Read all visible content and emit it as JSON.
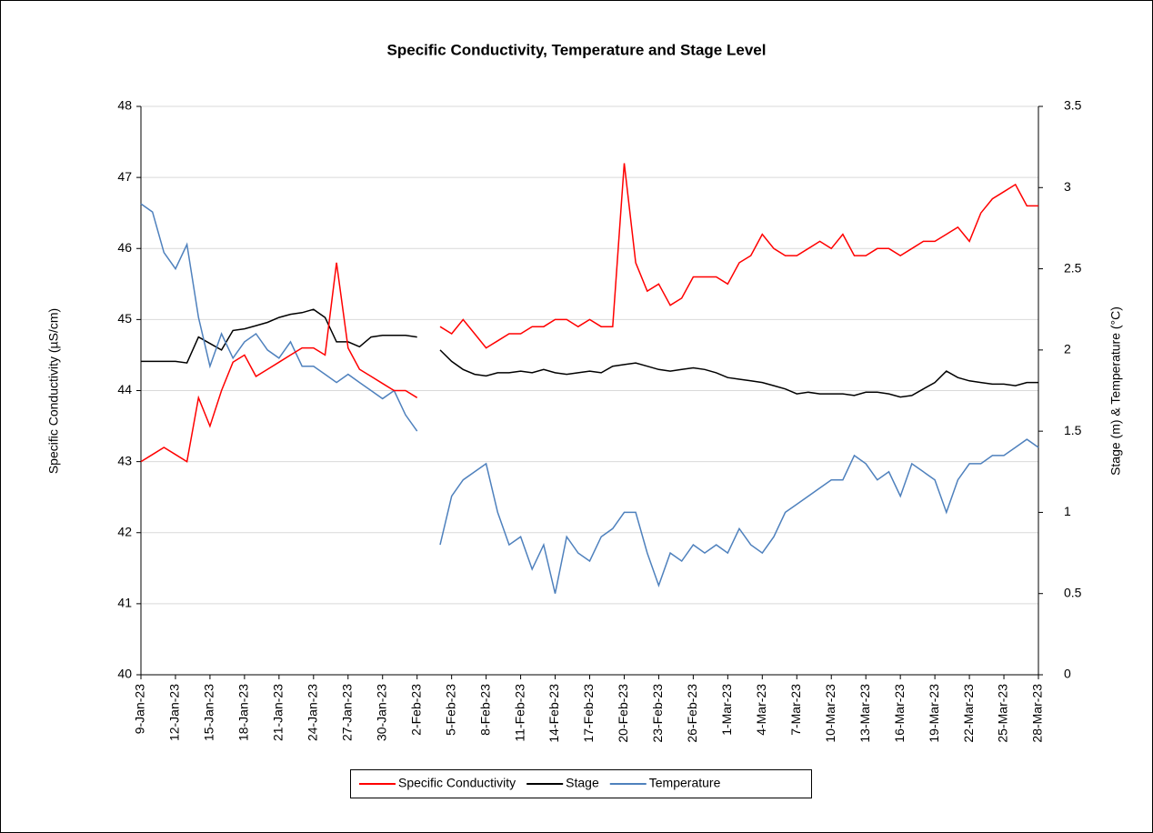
{
  "chart_data": {
    "type": "line",
    "title": "Specific Conductivity, Temperature and Stage Level",
    "y_label": "Specific Conductivity (µS/cm)",
    "y2_label": "Stage (m) & Temperature (°C)",
    "x": [
      "9-Jan-23",
      "10-Jan-23",
      "11-Jan-23",
      "12-Jan-23",
      "13-Jan-23",
      "14-Jan-23",
      "15-Jan-23",
      "16-Jan-23",
      "17-Jan-23",
      "18-Jan-23",
      "19-Jan-23",
      "20-Jan-23",
      "21-Jan-23",
      "22-Jan-23",
      "23-Jan-23",
      "24-Jan-23",
      "25-Jan-23",
      "26-Jan-23",
      "27-Jan-23",
      "28-Jan-23",
      "29-Jan-23",
      "30-Jan-23",
      "31-Jan-23",
      "1-Feb-23",
      "2-Feb-23",
      "3-Feb-23",
      "4-Feb-23",
      "5-Feb-23",
      "6-Feb-23",
      "7-Feb-23",
      "8-Feb-23",
      "9-Feb-23",
      "10-Feb-23",
      "11-Feb-23",
      "12-Feb-23",
      "13-Feb-23",
      "14-Feb-23",
      "15-Feb-23",
      "16-Feb-23",
      "17-Feb-23",
      "18-Feb-23",
      "19-Feb-23",
      "20-Feb-23",
      "21-Feb-23",
      "22-Feb-23",
      "23-Feb-23",
      "24-Feb-23",
      "25-Feb-23",
      "26-Feb-23",
      "27-Feb-23",
      "28-Feb-23",
      "1-Mar-23",
      "2-Mar-23",
      "3-Mar-23",
      "4-Mar-23",
      "5-Mar-23",
      "6-Mar-23",
      "7-Mar-23",
      "8-Mar-23",
      "9-Mar-23",
      "10-Mar-23",
      "11-Mar-23",
      "12-Mar-23",
      "13-Mar-23",
      "14-Mar-23",
      "15-Mar-23",
      "16-Mar-23",
      "17-Mar-23",
      "18-Mar-23",
      "19-Mar-23",
      "20-Mar-23",
      "21-Mar-23",
      "22-Mar-23",
      "23-Mar-23",
      "24-Mar-23",
      "25-Mar-23",
      "26-Mar-23",
      "27-Mar-23",
      "28-Mar-23"
    ],
    "xlim": [
      "9-Jan-23",
      "28-Mar-23"
    ],
    "xticks": [
      "9-Jan-23",
      "12-Jan-23",
      "15-Jan-23",
      "18-Jan-23",
      "21-Jan-23",
      "24-Jan-23",
      "27-Jan-23",
      "30-Jan-23",
      "2-Feb-23",
      "5-Feb-23",
      "8-Feb-23",
      "11-Feb-23",
      "14-Feb-23",
      "17-Feb-23",
      "20-Feb-23",
      "23-Feb-23",
      "26-Feb-23",
      "1-Mar-23",
      "4-Mar-23",
      "7-Mar-23",
      "10-Mar-23",
      "13-Mar-23",
      "16-Mar-23",
      "19-Mar-23",
      "22-Mar-23",
      "25-Mar-23",
      "28-Mar-23"
    ],
    "ylim": [
      40,
      48
    ],
    "yticks": [
      40,
      41,
      42,
      43,
      44,
      45,
      46,
      47,
      48
    ],
    "y2lim": [
      0,
      3.5
    ],
    "y2ticks": [
      0,
      0.5,
      1,
      1.5,
      2,
      2.5,
      3,
      3.5
    ],
    "grid": true,
    "legend": "bottom",
    "series": [
      {
        "name": "Specific Conductivity",
        "color": "#ff0000",
        "values": [
          43.0,
          43.1,
          43.2,
          43.1,
          43.0,
          43.9,
          43.5,
          44.0,
          44.4,
          44.5,
          44.2,
          44.3,
          44.4,
          44.5,
          44.6,
          44.6,
          44.5,
          45.8,
          44.6,
          44.3,
          44.2,
          44.1,
          44.0,
          44.0,
          43.9,
          null,
          44.9,
          44.8,
          45.0,
          44.8,
          44.6,
          44.7,
          44.8,
          44.8,
          44.9,
          44.9,
          45.0,
          45.0,
          44.9,
          45.0,
          44.9,
          44.9,
          47.2,
          45.8,
          45.4,
          45.5,
          45.2,
          45.3,
          45.6,
          45.6,
          45.6,
          45.5,
          45.8,
          45.9,
          46.2,
          46.0,
          45.9,
          45.9,
          46.0,
          46.1,
          46.0,
          46.2,
          45.9,
          45.9,
          46.0,
          46.0,
          45.9,
          46.0,
          46.1,
          46.1,
          46.2,
          46.3,
          46.1,
          46.5,
          46.7,
          46.8,
          46.9,
          46.6,
          46.6
        ]
      },
      {
        "name": "Stage",
        "color": "#000000",
        "axis": "y2",
        "values": [
          1.93,
          1.93,
          1.93,
          1.93,
          1.92,
          2.08,
          2.04,
          2.0,
          2.12,
          2.13,
          2.15,
          2.17,
          2.2,
          2.22,
          2.23,
          2.25,
          2.2,
          2.05,
          2.05,
          2.02,
          2.08,
          2.09,
          2.09,
          2.09,
          2.08,
          null,
          2.0,
          1.93,
          1.88,
          1.85,
          1.84,
          1.86,
          1.86,
          1.87,
          1.86,
          1.88,
          1.86,
          1.85,
          1.86,
          1.87,
          1.86,
          1.9,
          1.91,
          1.92,
          1.9,
          1.88,
          1.87,
          1.88,
          1.89,
          1.88,
          1.86,
          1.83,
          1.82,
          1.81,
          1.8,
          1.78,
          1.76,
          1.73,
          1.74,
          1.73,
          1.73,
          1.73,
          1.72,
          1.74,
          1.74,
          1.73,
          1.71,
          1.72,
          1.76,
          1.8,
          1.87,
          1.83,
          1.81,
          1.8,
          1.79,
          1.79,
          1.78,
          1.8,
          1.8
        ]
      },
      {
        "name": "Temperature",
        "color": "#4f81bd",
        "axis": "y2",
        "values": [
          2.9,
          2.85,
          2.6,
          2.5,
          2.65,
          2.2,
          1.9,
          2.1,
          1.95,
          2.05,
          2.1,
          2.0,
          1.95,
          2.05,
          1.9,
          1.9,
          1.85,
          1.8,
          1.85,
          1.8,
          1.75,
          1.7,
          1.75,
          1.6,
          1.5,
          null,
          0.8,
          1.1,
          1.2,
          1.25,
          1.3,
          1.0,
          0.8,
          0.85,
          0.65,
          0.8,
          0.5,
          0.85,
          0.75,
          0.7,
          0.85,
          0.9,
          1.0,
          1.0,
          0.75,
          0.55,
          0.75,
          0.7,
          0.8,
          0.75,
          0.8,
          0.75,
          0.9,
          0.8,
          0.75,
          0.85,
          1.0,
          1.05,
          1.1,
          1.15,
          1.2,
          1.2,
          1.35,
          1.3,
          1.2,
          1.25,
          1.1,
          1.3,
          1.25,
          1.2,
          1.0,
          1.2,
          1.3,
          1.3,
          1.35,
          1.35,
          1.4,
          1.45,
          1.4
        ]
      }
    ]
  }
}
